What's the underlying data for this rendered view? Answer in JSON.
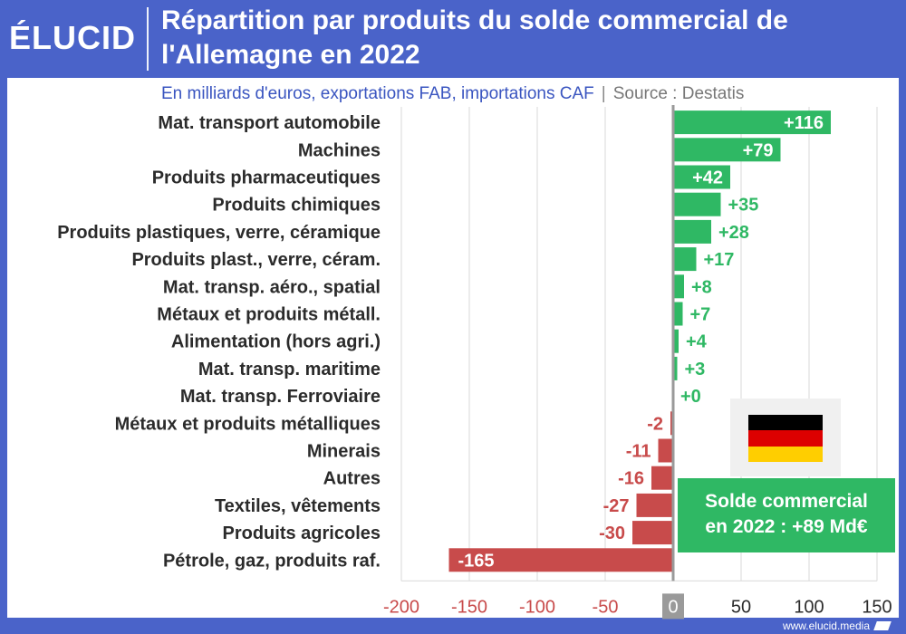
{
  "header": {
    "logo": "ÉLUCID",
    "title": "Répartition par produits du solde commercial de l'Allemagne en 2022"
  },
  "subtitle": {
    "main": "En milliards d'euros, exportations FAB, importations CAF",
    "separator": "|",
    "source": "Source : Destatis"
  },
  "colors": {
    "positive": "#2fb864",
    "negative": "#c84b4b",
    "brand": "#4a63c9"
  },
  "chart_data": {
    "type": "bar",
    "orientation": "horizontal",
    "categories": [
      "Mat. transport automobile",
      "Machines",
      "Produits pharmaceutiques",
      "Produits chimiques",
      "Produits plastiques, verre, céramique",
      "Produits plast., verre, céram.",
      "Mat. transp. aéro., spatial",
      "Métaux et produits métall.",
      "Alimentation (hors agri.)",
      "Mat. transp. maritime",
      "Mat. transp. Ferroviaire",
      "Métaux et produits métalliques",
      "Minerais",
      "Autres",
      "Textiles, vêtements",
      "Produits agricoles",
      "Pétrole, gaz, produits raf."
    ],
    "values": [
      116,
      79,
      42,
      35,
      28,
      17,
      8,
      7,
      4,
      3,
      0,
      -2,
      -11,
      -16,
      -27,
      -30,
      -165
    ],
    "value_labels": [
      "+116",
      "+79",
      "+42",
      "+35",
      "+28",
      "+17",
      "+8",
      "+7",
      "+4",
      "+3",
      "+0",
      "-2",
      "-11",
      "-16",
      "-27",
      "-30",
      "-165"
    ],
    "xlim": [
      -200,
      150
    ],
    "xticks": [
      -200,
      -150,
      -100,
      -50,
      0,
      50,
      100,
      150
    ],
    "xtick_labels": [
      "-200",
      "-150",
      "-100",
      "-50",
      "0",
      "50",
      "100",
      "150"
    ],
    "grid": true
  },
  "annotation": {
    "line1": "Solde commercial",
    "line2": "en 2022 : +89 Md€"
  },
  "footer": "www.elucid.media"
}
